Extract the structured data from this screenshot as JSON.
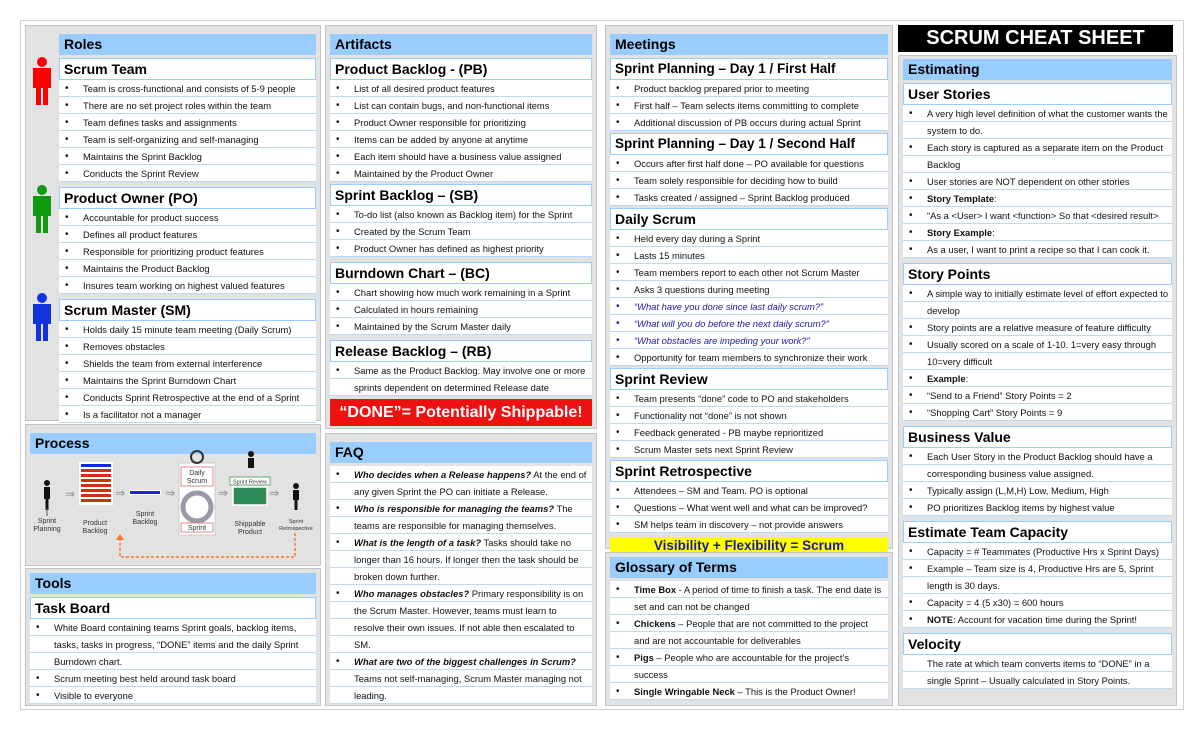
{
  "title": "SCRUM CHEAT SHEET",
  "colors": {
    "header": "#99ccff",
    "done": "#ee1111",
    "visibility": "#ffff00",
    "scrum_team_icon": "#ff0000",
    "po_icon": "#119911",
    "sm_icon": "#1133dd"
  },
  "roles": {
    "title": "Roles",
    "groups": [
      {
        "title": "Scrum Team",
        "icon": "person-icon-red",
        "items": [
          {
            "t": "Team is cross-functional and consists of 5-9 people"
          },
          {
            "t": "There are no set project roles within the team"
          },
          {
            "t": "Team defines tasks and assignments"
          },
          {
            "t": "Team is self-organizing and self-managing"
          },
          {
            "t": "Maintains the Sprint Backlog"
          },
          {
            "t": "Conducts the Sprint Review"
          }
        ]
      },
      {
        "title": "Product Owner (PO)",
        "icon": "person-icon-green",
        "items": [
          {
            "t": "Accountable for product success"
          },
          {
            "t": "Defines all product features"
          },
          {
            "t": "Responsible for prioritizing product features"
          },
          {
            "t": "Maintains the Product Backlog"
          },
          {
            "t": "Insures team working on highest valued features"
          }
        ]
      },
      {
        "title": "Scrum Master (SM)",
        "icon": "person-icon-blue",
        "items": [
          {
            "t": "Holds daily 15 minute  team meeting (Daily Scrum)"
          },
          {
            "t": "Removes obstacles"
          },
          {
            "t": "Shields the team from external interference"
          },
          {
            "t": "Maintains the Sprint Burndown Chart"
          },
          {
            "t": "Conducts Sprint Retrospective at the end of a Sprint"
          },
          {
            "t": "Is a facilitator not a manager"
          }
        ]
      }
    ]
  },
  "process": {
    "title": "Process",
    "labels": {
      "planning1": "Sprint",
      "planning2": "Planning",
      "pb1": "Product",
      "pb2": "Backlog",
      "sb1": "Sprint",
      "sb2": "Backlog",
      "daily1": "Daily",
      "daily2": "Scrum",
      "sprint": "Sprint",
      "review": "Sprint Review",
      "ship1": "Shippable",
      "ship2": "Product",
      "retro1": "Sprint",
      "retro2": "Retrospective"
    }
  },
  "tools": {
    "title": "Tools",
    "groups": [
      {
        "title": "Task Board",
        "items": [
          {
            "t": "White Board containing teams Sprint goals, backlog items, tasks, tasks in progress, “DONE” items and the daily Sprint Burndown chart."
          },
          {
            "t": "Scrum meeting best held around task board"
          },
          {
            "t": "Visible to everyone"
          }
        ]
      }
    ]
  },
  "artifacts": {
    "title": "Artifacts",
    "groups": [
      {
        "title": "Product Backlog - (PB)",
        "items": [
          {
            "t": "List of all desired product features"
          },
          {
            "t": "List can contain bugs, and non-functional items"
          },
          {
            "t": "Product Owner responsible for prioritizing"
          },
          {
            "t": "Items can be added by anyone at anytime"
          },
          {
            "t": "Each item should have a business value assigned"
          },
          {
            "t": "Maintained by the Product Owner"
          }
        ]
      },
      {
        "title": "Sprint Backlog – (SB)",
        "items": [
          {
            "t": "To-do list (also known as Backlog item) for the Sprint"
          },
          {
            "t": "Created by the Scrum Team"
          },
          {
            "t": "Product Owner has defined as highest priority"
          }
        ]
      },
      {
        "title": " Burndown Chart – (BC)",
        "items": [
          {
            "t": "Chart showing how much work remaining in a Sprint"
          },
          {
            "t": "Calculated in hours remaining"
          },
          {
            "t": "Maintained by the Scrum Master daily"
          }
        ]
      },
      {
        "title": "Release Backlog – (RB)",
        "items": [
          {
            "t": "Same as the Product Backlog. May involve one or more sprints dependent on determined Release date"
          }
        ]
      }
    ],
    "banner": "“DONE”= Potentially Shippable!"
  },
  "faq": {
    "title": "FAQ",
    "groups": [
      {
        "title": "",
        "items": [
          {
            "q": "Who decides when a Release happens?",
            "t": "  At the end of any given Sprint the PO can initiate a Release."
          },
          {
            "q": "Who is responsible for managing the teams?",
            "t": "  The teams are responsible for managing themselves."
          },
          {
            "q": "What is the length of a task?",
            "t": "  Tasks should take no longer than 16 hours. If longer then the task should be broken down further."
          },
          {
            "q": "Who manages obstacles?",
            "t": "  Primary responsibility is on the Scrum Master.  However, teams must learn to resolve their own issues.  If not able then escalated to SM."
          },
          {
            "q": "What are two of the biggest challenges in Scrum?",
            "t": " Teams not self-managing, Scrum Master managing not leading."
          }
        ]
      }
    ]
  },
  "meetings": {
    "title": "Meetings",
    "groups": [
      {
        "title": "Sprint Planning – Day 1 / First Half",
        "items": [
          {
            "t": "Product backlog prepared prior to meeting"
          },
          {
            "t": "First half – Team selects items committing to complete"
          },
          {
            "t": "Additional discussion of PB occurs during actual Sprint"
          }
        ]
      },
      {
        "title": "Sprint Planning – Day 1 / Second Half",
        "items": [
          {
            "t": "Occurs after first half done – PO available for questions"
          },
          {
            "t": "Team solely responsible for deciding how to build"
          },
          {
            "t": "Tasks created / assigned – Sprint Backlog produced"
          }
        ]
      },
      {
        "title": "Daily Scrum",
        "items": [
          {
            "t": "Held every day during a Sprint"
          },
          {
            "t": "Lasts 15 minutes"
          },
          {
            "t": "Team members report to each other not Scrum Master"
          },
          {
            "t": "Asks 3 questions during meeting"
          },
          {
            "t": "“What have you done since last daily scrum?”",
            "blue": true
          },
          {
            "t": "“What will you do before the next daily scrum?”",
            "blue": true
          },
          {
            "t": "“What obstacles are impeding your work?”",
            "blue": true
          },
          {
            "t": "Opportunity for team members to synchronize their work"
          }
        ]
      },
      {
        "title": "Sprint Review",
        "items": [
          {
            "t": "Team presents “done” code to PO and stakeholders"
          },
          {
            "t": "Functionality not “done” is not shown"
          },
          {
            "t": "Feedback generated -  PB maybe reprioritized"
          },
          {
            "t": "Scrum Master sets next Sprint Review"
          }
        ]
      },
      {
        "title": "Sprint Retrospective",
        "items": [
          {
            "t": "Attendees – SM and Team.  PO is optional"
          },
          {
            "t": "Questions – What went well and what can be improved?"
          },
          {
            "t": "SM helps team in discovery – not provide answers"
          }
        ]
      }
    ],
    "banner": "Visibility + Flexibility = Scrum"
  },
  "glossary": {
    "title": "Glossary of Terms",
    "groups": [
      {
        "title": "",
        "items": [
          {
            "b": "Time Box",
            "t": " -  A period of time to finish a task. The end date is set and can not be changed"
          },
          {
            "b": "Chickens",
            "t": " – People that are not committed to the project and are not accountable for deliverables"
          },
          {
            "b": "Pigs",
            "t": " – People who are accountable for the project’s success"
          },
          {
            "b": "Single Wringable Neck",
            "t": " – This is the Product Owner!"
          }
        ]
      }
    ]
  },
  "estimating": {
    "title": "Estimating",
    "groups": [
      {
        "title": "User Stories",
        "items": [
          {
            "t": "A very high level definition of  what the customer wants the system to do."
          },
          {
            "t": "Each story is captured as a separate item on the Product Backlog"
          },
          {
            "t": "User stories are NOT dependent on other stories"
          },
          {
            "b": "Story Template",
            "t": ":"
          },
          {
            "t": "“As a <User> I want <function> So that <desired result>"
          },
          {
            "b": "Story Example",
            "t": ":"
          },
          {
            "t": "As a user, I want to print a recipe so that I can cook it."
          }
        ]
      },
      {
        "title": "Story Points",
        "items": [
          {
            "t": "A simple way to initially estimate level of effort expected to develop"
          },
          {
            "t": "Story points are a relative measure of feature difficulty"
          },
          {
            "t": "Usually scored on a scale of 1-10.  1=very easy through 10=very difficult"
          },
          {
            "b": "Example",
            "t": ":"
          },
          {
            "t": "“Send to a Friend” Story Points = 2"
          },
          {
            "t": "“Shopping Cart” Story Points = 9"
          }
        ]
      },
      {
        "title": "Business Value",
        "items": [
          {
            "t": "Each User Story in the Product Backlog should have a corresponding business value assigned."
          },
          {
            "t": "Typically assign (L,M,H) Low, Medium, High"
          },
          {
            "t": "PO prioritizes Backlog items by highest value"
          }
        ]
      },
      {
        "title": "Estimate Team Capacity",
        "items": [
          {
            "t": "Capacity = # Teammates (Productive Hrs x Sprint Days)"
          },
          {
            "t": "Example – Team size is 4, Productive Hrs are 5, Sprint length is 30 days."
          },
          {
            "t": "Capacity = 4 (5 x30) = 600 hours"
          },
          {
            "b": "NOTE",
            "t": ":  Account for vacation time during the Sprint!"
          }
        ]
      },
      {
        "title": "Velocity",
        "items": [
          {
            "t": "The rate at which team converts items to “DONE” in a single Sprint – Usually calculated in Story Points.",
            "nobullet": true
          }
        ]
      }
    ]
  }
}
